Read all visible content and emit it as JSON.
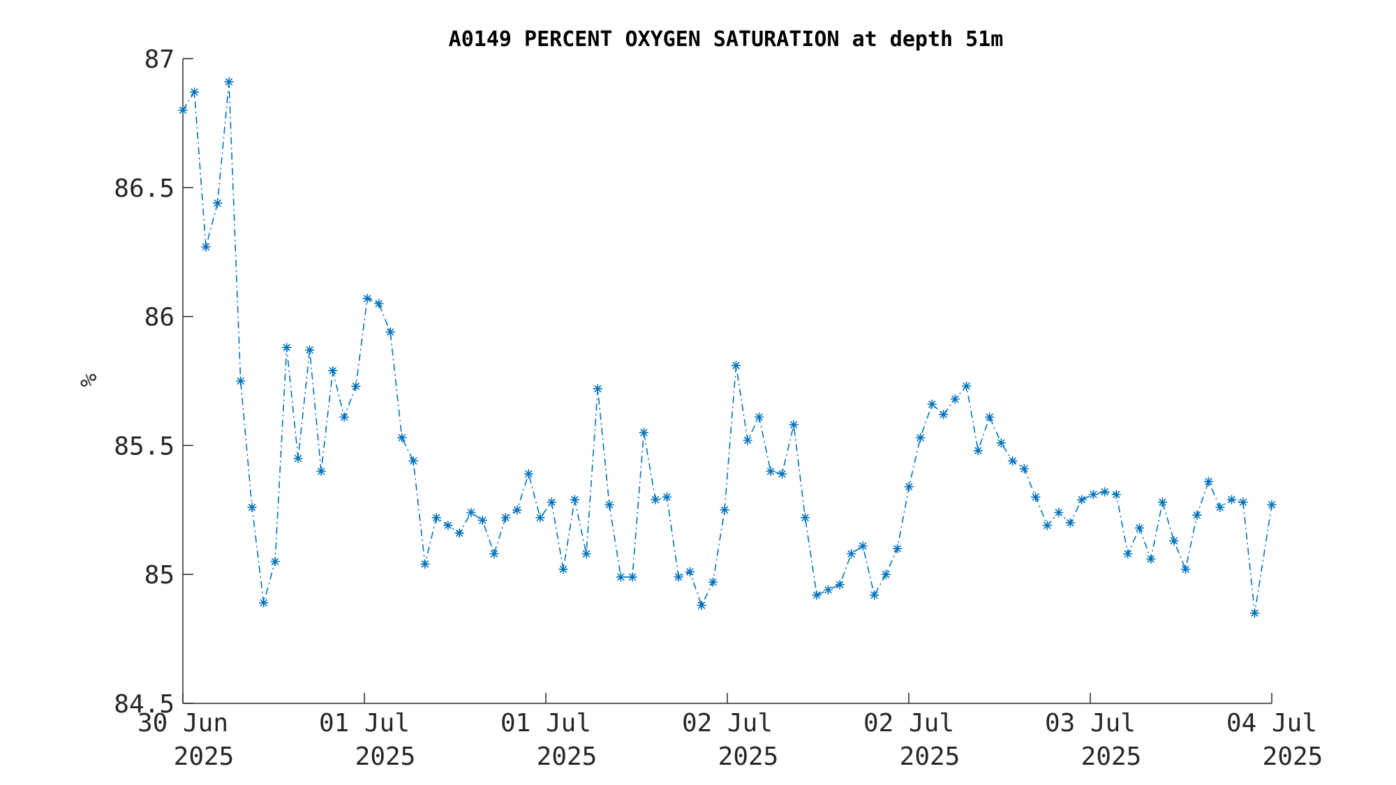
{
  "chart_data": {
    "type": "line",
    "title": "A0149 PERCENT OXYGEN SATURATION at depth 51m",
    "ylabel": "%",
    "xlabel": "",
    "ylim": [
      84.5,
      87
    ],
    "yticks": [
      "84.5",
      "85",
      "85.5",
      "86",
      "86.5",
      "87"
    ],
    "ytick_values": [
      84.5,
      85,
      85.5,
      86,
      86.5,
      87
    ],
    "xlim": [
      0,
      6
    ],
    "xticks": [
      {
        "value": 0,
        "line1": "30 Jun",
        "line2": "2025"
      },
      {
        "value": 1,
        "line1": "01 Jul",
        "line2": "2025"
      },
      {
        "value": 2,
        "line1": "01 Jul",
        "line2": "2025"
      },
      {
        "value": 3,
        "line1": "02 Jul",
        "line2": "2025"
      },
      {
        "value": 4,
        "line1": "02 Jul",
        "line2": "2025"
      },
      {
        "value": 5,
        "line1": "03 Jul",
        "line2": "2025"
      },
      {
        "value": 6,
        "line1": "04 Jul",
        "line2": "2025"
      }
    ],
    "color": "#0072BD",
    "grid": false,
    "legend": "none",
    "series": [
      {
        "x": [
          0,
          0.0635,
          0.127,
          0.191,
          0.254,
          0.318,
          0.381,
          0.445,
          0.508,
          0.572,
          0.635,
          0.699,
          0.762,
          0.826,
          0.889,
          0.953,
          1.016,
          1.08,
          1.143,
          1.207,
          1.27,
          1.334,
          1.397,
          1.461,
          1.524,
          1.588,
          1.651,
          1.715,
          1.778,
          1.842,
          1.905,
          1.969,
          2.032,
          2.096,
          2.159,
          2.223,
          2.286,
          2.35,
          2.413,
          2.477,
          2.54,
          2.604,
          2.667,
          2.731,
          2.794,
          2.858,
          2.921,
          2.985,
          3.048,
          3.112,
          3.175,
          3.239,
          3.302,
          3.366,
          3.429,
          3.493,
          3.556,
          3.62,
          3.683,
          3.747,
          3.81,
          3.874,
          3.937,
          4.001,
          4.064,
          4.128,
          4.191,
          4.255,
          4.318,
          4.382,
          4.445,
          4.509,
          4.572,
          4.636,
          4.699,
          4.763,
          4.826,
          4.89,
          4.953,
          5.017,
          5.08,
          5.144,
          5.207,
          5.271,
          5.334,
          5.398,
          5.461,
          5.525,
          5.588,
          5.652,
          5.715,
          5.779,
          5.842,
          5.906,
          6.0
        ],
        "y": [
          86.8,
          86.87,
          86.27,
          86.44,
          86.91,
          85.75,
          85.26,
          84.89,
          85.05,
          85.88,
          85.45,
          85.87,
          85.4,
          85.79,
          85.61,
          85.73,
          86.07,
          86.05,
          85.94,
          85.53,
          85.44,
          85.04,
          85.22,
          85.19,
          85.16,
          85.24,
          85.21,
          85.08,
          85.22,
          85.25,
          85.39,
          85.22,
          85.28,
          85.02,
          85.29,
          85.08,
          85.72,
          85.27,
          84.99,
          84.99,
          85.55,
          85.29,
          85.3,
          84.99,
          85.01,
          84.88,
          84.97,
          85.25,
          85.81,
          85.52,
          85.61,
          85.4,
          85.39,
          85.58,
          85.22,
          84.92,
          84.94,
          84.96,
          85.08,
          85.11,
          84.92,
          85.0,
          85.1,
          85.34,
          85.53,
          85.66,
          85.62,
          85.68,
          85.73,
          85.48,
          85.61,
          85.51,
          85.44,
          85.41,
          85.3,
          85.19,
          85.24,
          85.2,
          85.29,
          85.31,
          85.32,
          85.31,
          85.08,
          85.18,
          85.06,
          85.28,
          85.13,
          85.02,
          85.23,
          85.36,
          85.26,
          85.29,
          85.28,
          84.85,
          85.27
        ]
      }
    ]
  }
}
